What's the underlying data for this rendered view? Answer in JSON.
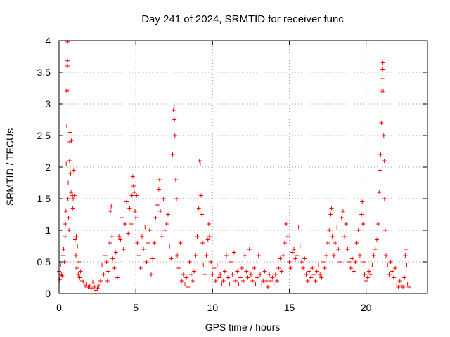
{
  "chart_data": {
    "type": "scatter",
    "title": "Day 241 of 2024, SRMTID for receiver func",
    "xlabel": "GPS time / hours",
    "ylabel": "SRMTID / TECUs",
    "xlim": [
      0,
      24
    ],
    "ylim": [
      0,
      4
    ],
    "xticks": [
      0,
      5,
      10,
      15,
      20
    ],
    "xtick_labels": [
      "0",
      "5",
      "10",
      "15",
      "20"
    ],
    "yticks": [
      0,
      0.5,
      1,
      1.5,
      2,
      2.5,
      3,
      3.5,
      4
    ],
    "ytick_labels": [
      "0",
      "0.5",
      "1",
      "1.5",
      "2",
      "2.5",
      "3",
      "3.5",
      "4"
    ],
    "grid": true,
    "marker": "+",
    "color": "#ff0000",
    "series": [
      {
        "name": "SRMTID",
        "points": [
          [
            0.0,
            0.35
          ],
          [
            0.05,
            0.22
          ],
          [
            0.1,
            0.45
          ],
          [
            0.15,
            0.3
          ],
          [
            0.2,
            0.28
          ],
          [
            0.25,
            0.6
          ],
          [
            0.3,
            0.7
          ],
          [
            0.35,
            0.5
          ],
          [
            0.4,
            0.9
          ],
          [
            0.42,
            1.1
          ],
          [
            0.45,
            1.3
          ],
          [
            0.47,
            2.05
          ],
          [
            0.5,
            2.65
          ],
          [
            0.5,
            3.2
          ],
          [
            0.52,
            3.22
          ],
          [
            0.55,
            3.6
          ],
          [
            0.55,
            3.68
          ],
          [
            0.56,
            3.98
          ],
          [
            0.58,
            1.5
          ],
          [
            0.6,
            1.75
          ],
          [
            0.62,
            1.2
          ],
          [
            0.65,
            1.0
          ],
          [
            0.68,
            2.1
          ],
          [
            0.7,
            2.4
          ],
          [
            0.72,
            2.55
          ],
          [
            0.75,
            1.9
          ],
          [
            0.78,
            1.6
          ],
          [
            0.8,
            2.42
          ],
          [
            0.85,
            2.05
          ],
          [
            0.88,
            1.55
          ],
          [
            0.9,
            1.35
          ],
          [
            0.92,
            1.5
          ],
          [
            0.95,
            1.95
          ],
          [
            1.0,
            1.55
          ],
          [
            1.05,
            0.85
          ],
          [
            1.1,
            0.6
          ],
          [
            1.12,
            0.9
          ],
          [
            1.15,
            0.4
          ],
          [
            1.2,
            0.75
          ],
          [
            1.25,
            0.3
          ],
          [
            1.3,
            0.5
          ],
          [
            1.35,
            0.25
          ],
          [
            1.4,
            0.35
          ],
          [
            1.5,
            0.2
          ],
          [
            1.6,
            0.18
          ],
          [
            1.7,
            0.12
          ],
          [
            1.8,
            0.15
          ],
          [
            1.9,
            0.1
          ],
          [
            2.0,
            0.12
          ],
          [
            2.1,
            0.08
          ],
          [
            2.2,
            0.18
          ],
          [
            2.3,
            0.1
          ],
          [
            2.4,
            0.05
          ],
          [
            2.5,
            0.08
          ],
          [
            2.6,
            0.12
          ],
          [
            2.7,
            0.2
          ],
          [
            2.8,
            0.45
          ],
          [
            2.9,
            0.3
          ],
          [
            3.0,
            0.6
          ],
          [
            3.1,
            0.5
          ],
          [
            3.15,
            0.2
          ],
          [
            3.2,
            0.35
          ],
          [
            3.3,
            0.8
          ],
          [
            3.35,
            1.3
          ],
          [
            3.4,
            1.38
          ],
          [
            3.45,
            0.9
          ],
          [
            3.5,
            0.55
          ],
          [
            3.6,
            0.4
          ],
          [
            3.7,
            0.65
          ],
          [
            3.8,
            0.25
          ],
          [
            3.9,
            0.9
          ],
          [
            4.0,
            0.85
          ],
          [
            4.1,
            1.2
          ],
          [
            4.2,
            0.7
          ],
          [
            4.3,
            1.1
          ],
          [
            4.4,
            1.45
          ],
          [
            4.5,
            0.95
          ],
          [
            4.6,
            1.35
          ],
          [
            4.7,
            1.1
          ],
          [
            4.75,
            1.55
          ],
          [
            4.8,
            1.85
          ],
          [
            4.85,
            1.7
          ],
          [
            4.9,
            1.6
          ],
          [
            4.95,
            1.3
          ],
          [
            5.0,
            1.2
          ],
          [
            5.05,
            1.55
          ],
          [
            5.1,
            0.8
          ],
          [
            5.2,
            0.6
          ],
          [
            5.3,
            0.4
          ],
          [
            5.4,
            0.9
          ],
          [
            5.5,
            0.7
          ],
          [
            5.6,
            1.05
          ],
          [
            5.7,
            0.5
          ],
          [
            5.8,
            0.8
          ],
          [
            5.9,
            1.0
          ],
          [
            6.0,
            0.3
          ],
          [
            6.1,
            0.55
          ],
          [
            6.2,
            0.8
          ],
          [
            6.3,
            1.2
          ],
          [
            6.4,
            1.4
          ],
          [
            6.5,
            1.65
          ],
          [
            6.55,
            1.8
          ],
          [
            6.6,
            1.3
          ],
          [
            6.7,
            0.9
          ],
          [
            6.8,
            1.5
          ],
          [
            6.9,
            1.0
          ],
          [
            7.0,
            1.1
          ],
          [
            7.1,
            1.25
          ],
          [
            7.2,
            0.75
          ],
          [
            7.3,
            0.55
          ],
          [
            7.4,
            2.2
          ],
          [
            7.45,
            2.9
          ],
          [
            7.5,
            2.95
          ],
          [
            7.52,
            2.75
          ],
          [
            7.55,
            2.5
          ],
          [
            7.6,
            1.8
          ],
          [
            7.65,
            1.5
          ],
          [
            7.7,
            0.6
          ],
          [
            7.8,
            0.4
          ],
          [
            7.9,
            0.8
          ],
          [
            8.0,
            0.2
          ],
          [
            8.1,
            0.3
          ],
          [
            8.2,
            0.15
          ],
          [
            8.3,
            0.25
          ],
          [
            8.4,
            0.1
          ],
          [
            8.5,
            0.5
          ],
          [
            8.6,
            0.3
          ],
          [
            8.7,
            0.2
          ],
          [
            8.8,
            0.35
          ],
          [
            8.9,
            0.6
          ],
          [
            9.0,
            0.9
          ],
          [
            9.1,
            1.35
          ],
          [
            9.15,
            2.1
          ],
          [
            9.2,
            2.05
          ],
          [
            9.25,
            1.55
          ],
          [
            9.3,
            1.25
          ],
          [
            9.35,
            0.8
          ],
          [
            9.4,
            0.45
          ],
          [
            9.5,
            0.3
          ],
          [
            9.6,
            0.6
          ],
          [
            9.7,
            0.85
          ],
          [
            9.75,
            1.1
          ],
          [
            9.8,
            0.9
          ],
          [
            9.9,
            0.5
          ],
          [
            10.0,
            0.3
          ],
          [
            10.1,
            0.4
          ],
          [
            10.2,
            0.2
          ],
          [
            10.3,
            0.45
          ],
          [
            10.4,
            0.25
          ],
          [
            10.5,
            0.3
          ],
          [
            10.6,
            0.15
          ],
          [
            10.7,
            0.2
          ],
          [
            10.8,
            0.35
          ],
          [
            10.9,
            0.6
          ],
          [
            11.0,
            0.25
          ],
          [
            11.1,
            0.15
          ],
          [
            11.2,
            0.5
          ],
          [
            11.3,
            0.3
          ],
          [
            11.4,
            0.65
          ],
          [
            11.5,
            0.2
          ],
          [
            11.6,
            0.35
          ],
          [
            11.7,
            0.15
          ],
          [
            11.8,
            0.25
          ],
          [
            11.9,
            0.4
          ],
          [
            12.0,
            0.2
          ],
          [
            12.1,
            0.6
          ],
          [
            12.2,
            0.35
          ],
          [
            12.3,
            0.25
          ],
          [
            12.4,
            0.7
          ],
          [
            12.5,
            0.3
          ],
          [
            12.6,
            0.2
          ],
          [
            12.7,
            0.4
          ],
          [
            12.8,
            0.15
          ],
          [
            12.9,
            0.25
          ],
          [
            13.0,
            0.6
          ],
          [
            13.1,
            0.3
          ],
          [
            13.2,
            0.15
          ],
          [
            13.3,
            0.2
          ],
          [
            13.4,
            0.35
          ],
          [
            13.5,
            0.2
          ],
          [
            13.6,
            0.1
          ],
          [
            13.7,
            0.3
          ],
          [
            13.8,
            0.2
          ],
          [
            13.9,
            0.25
          ],
          [
            14.0,
            0.15
          ],
          [
            14.1,
            0.3
          ],
          [
            14.2,
            0.2
          ],
          [
            14.3,
            0.4
          ],
          [
            14.4,
            0.55
          ],
          [
            14.5,
            0.35
          ],
          [
            14.6,
            0.6
          ],
          [
            14.7,
            0.8
          ],
          [
            14.8,
            1.1
          ],
          [
            14.9,
            0.9
          ],
          [
            15.0,
            0.5
          ],
          [
            15.1,
            0.4
          ],
          [
            15.2,
            0.65
          ],
          [
            15.3,
            0.7
          ],
          [
            15.4,
            0.55
          ],
          [
            15.5,
            0.6
          ],
          [
            15.6,
            1.05
          ],
          [
            15.7,
            0.75
          ],
          [
            15.8,
            0.5
          ],
          [
            15.9,
            0.4
          ],
          [
            16.0,
            0.55
          ],
          [
            16.1,
            0.3
          ],
          [
            16.2,
            0.2
          ],
          [
            16.3,
            0.35
          ],
          [
            16.4,
            0.25
          ],
          [
            16.5,
            0.4
          ],
          [
            16.6,
            0.3
          ],
          [
            16.7,
            0.2
          ],
          [
            16.8,
            0.35
          ],
          [
            16.9,
            0.45
          ],
          [
            17.0,
            0.3
          ],
          [
            17.1,
            0.25
          ],
          [
            17.2,
            0.5
          ],
          [
            17.3,
            0.4
          ],
          [
            17.4,
            0.6
          ],
          [
            17.5,
            0.8
          ],
          [
            17.6,
            1.0
          ],
          [
            17.7,
            1.25
          ],
          [
            17.75,
            1.35
          ],
          [
            17.8,
            0.9
          ],
          [
            17.9,
            0.6
          ],
          [
            18.0,
            0.8
          ],
          [
            18.1,
            1.05
          ],
          [
            18.2,
            0.7
          ],
          [
            18.3,
            0.5
          ],
          [
            18.4,
            1.2
          ],
          [
            18.5,
            1.3
          ],
          [
            18.6,
            0.9
          ],
          [
            18.7,
            1.1
          ],
          [
            18.8,
            0.7
          ],
          [
            18.9,
            0.5
          ],
          [
            19.0,
            0.4
          ],
          [
            19.1,
            0.55
          ],
          [
            19.2,
            0.35
          ],
          [
            19.3,
            0.5
          ],
          [
            19.4,
            0.8
          ],
          [
            19.5,
            1.0
          ],
          [
            19.6,
            0.6
          ],
          [
            19.7,
            1.25
          ],
          [
            19.75,
            1.45
          ],
          [
            19.8,
            1.1
          ],
          [
            19.85,
            0.5
          ],
          [
            19.9,
            0.3
          ],
          [
            20.0,
            0.2
          ],
          [
            20.1,
            0.25
          ],
          [
            20.2,
            0.35
          ],
          [
            20.3,
            0.3
          ],
          [
            20.4,
            0.45
          ],
          [
            20.5,
            0.6
          ],
          [
            20.6,
            0.7
          ],
          [
            20.7,
            0.85
          ],
          [
            20.8,
            1.1
          ],
          [
            20.85,
            1.6
          ],
          [
            20.9,
            1.95
          ],
          [
            20.95,
            2.2
          ],
          [
            21.0,
            2.7
          ],
          [
            21.02,
            3.2
          ],
          [
            21.05,
            3.4
          ],
          [
            21.08,
            3.55
          ],
          [
            21.1,
            3.65
          ],
          [
            21.12,
            3.2
          ],
          [
            21.15,
            2.5
          ],
          [
            21.18,
            2.1
          ],
          [
            21.2,
            1.5
          ],
          [
            21.25,
            1.0
          ],
          [
            21.3,
            0.6
          ],
          [
            21.4,
            0.45
          ],
          [
            21.5,
            0.3
          ],
          [
            21.6,
            0.5
          ],
          [
            21.7,
            0.35
          ],
          [
            21.8,
            0.25
          ],
          [
            21.9,
            0.4
          ],
          [
            22.0,
            0.15
          ],
          [
            22.1,
            0.1
          ],
          [
            22.2,
            0.2
          ],
          [
            22.3,
            0.12
          ],
          [
            22.4,
            0.1
          ],
          [
            22.5,
            0.25
          ],
          [
            22.55,
            0.6
          ],
          [
            22.6,
            0.7
          ],
          [
            22.65,
            0.45
          ],
          [
            22.7,
            0.15
          ],
          [
            22.8,
            0.1
          ]
        ]
      }
    ]
  }
}
